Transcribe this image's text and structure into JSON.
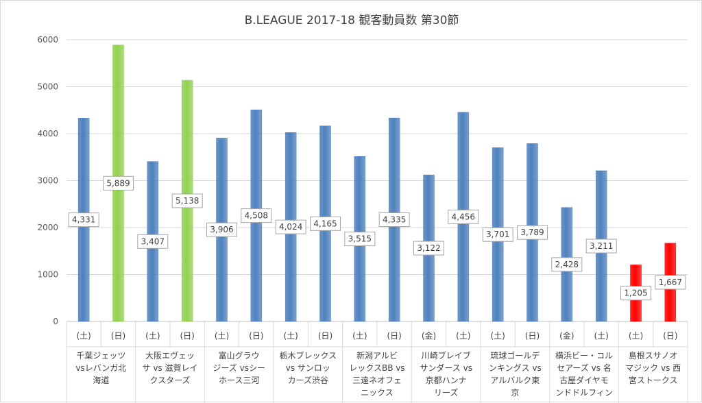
{
  "chart_data": {
    "type": "bar",
    "title": "B.LEAGUE 2017-18 観客動員数 第30節",
    "ylim": [
      0,
      6000
    ],
    "yticks": [
      0,
      1000,
      2000,
      3000,
      4000,
      5000,
      6000
    ],
    "grid": true,
    "colors": {
      "blue": "#4f81bd",
      "green": "#92d050",
      "red": "#ff0000"
    },
    "games": [
      {
        "matchup": [
          "千葉ジェッツ",
          "vsレバンガ北",
          "海道"
        ],
        "bars": [
          {
            "day": "(土)",
            "value": 4331,
            "label": "4,331",
            "color": "blue"
          },
          {
            "day": "(日)",
            "value": 5889,
            "label": "5,889",
            "color": "green"
          }
        ]
      },
      {
        "matchup": [
          "大阪エヴェッ",
          "サ vs 滋賀レイ",
          "クスターズ"
        ],
        "bars": [
          {
            "day": "(土)",
            "value": 3407,
            "label": "3,407",
            "color": "blue"
          },
          {
            "day": "(日)",
            "value": 5138,
            "label": "5,138",
            "color": "green"
          }
        ]
      },
      {
        "matchup": [
          "富山グラウ",
          "ジーズ vsシー",
          "ホース三河"
        ],
        "bars": [
          {
            "day": "(土)",
            "value": 3906,
            "label": "3,906",
            "color": "blue"
          },
          {
            "day": "(日)",
            "value": 4508,
            "label": "4,508",
            "color": "blue"
          }
        ]
      },
      {
        "matchup": [
          "栃木ブレックス",
          "vs サンロッ",
          "カーズ渋谷"
        ],
        "bars": [
          {
            "day": "(土)",
            "value": 4024,
            "label": "4,024",
            "color": "blue"
          },
          {
            "day": "(日)",
            "value": 4165,
            "label": "4,165",
            "color": "blue"
          }
        ]
      },
      {
        "matchup": [
          "新潟アルビ",
          "レックスBB vs",
          "三遠ネオフェ",
          "ニックス"
        ],
        "bars": [
          {
            "day": "(土)",
            "value": 3515,
            "label": "3,515",
            "color": "blue"
          },
          {
            "day": "(日)",
            "value": 4335,
            "label": "4,335",
            "color": "blue"
          }
        ]
      },
      {
        "matchup": [
          "川崎ブレイブ",
          "サンダース vs",
          "京都ハンナ",
          "リーズ"
        ],
        "bars": [
          {
            "day": "(金)",
            "value": 3122,
            "label": "3,122",
            "color": "blue"
          },
          {
            "day": "(土)",
            "value": 4456,
            "label": "4,456",
            "color": "blue"
          }
        ]
      },
      {
        "matchup": [
          "琉球ゴールデ",
          "ンキングス vs",
          "アルバルク東",
          "京"
        ],
        "bars": [
          {
            "day": "(土)",
            "value": 3701,
            "label": "3,701",
            "color": "blue"
          },
          {
            "day": "(日)",
            "value": 3789,
            "label": "3,789",
            "color": "blue"
          }
        ]
      },
      {
        "matchup": [
          "横浜ビー・コル",
          "セアーズ vs 名",
          "古屋ダイヤモ",
          "ンドドルフィン"
        ],
        "bars": [
          {
            "day": "(金)",
            "value": 2428,
            "label": "2,428",
            "color": "blue"
          },
          {
            "day": "(土)",
            "value": 3211,
            "label": "3,211",
            "color": "blue"
          }
        ]
      },
      {
        "matchup": [
          "島根スサノオ",
          "マジック vs 西",
          "宮ストークス"
        ],
        "bars": [
          {
            "day": "(土)",
            "value": 1205,
            "label": "1,205",
            "color": "red"
          },
          {
            "day": "(日)",
            "value": 1667,
            "label": "1,667",
            "color": "red"
          }
        ]
      }
    ]
  }
}
